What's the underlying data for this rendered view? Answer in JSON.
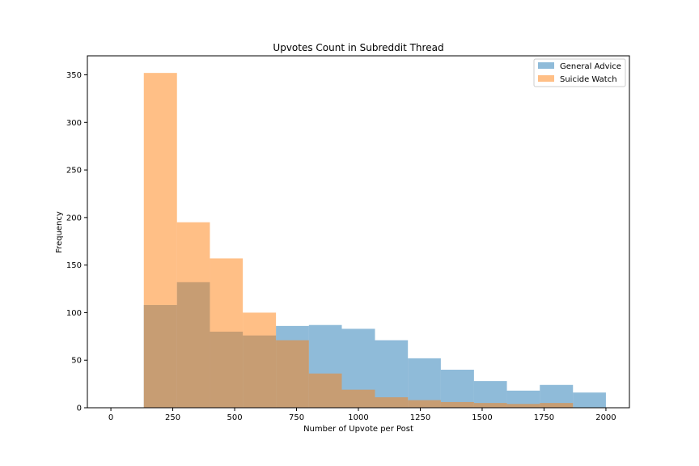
{
  "chart_data": {
    "type": "bar",
    "title": "Upvotes Count in Subreddit Thread",
    "xlabel": "Number of Upvote per Post",
    "ylabel": "Frequency",
    "xlim": [
      -95,
      2095
    ],
    "ylim": [
      0,
      370
    ],
    "xticks": [
      0,
      250,
      500,
      750,
      1000,
      1250,
      1500,
      1750,
      2000
    ],
    "yticks": [
      0,
      50,
      100,
      150,
      200,
      250,
      300,
      350
    ],
    "grid": false,
    "legend_position": "top-right",
    "series": [
      {
        "name": "General Advice",
        "color": "#1f77b4",
        "alpha": 0.5,
        "bins": [
          [
            133,
            267
          ],
          [
            267,
            400
          ],
          [
            400,
            533
          ],
          [
            533,
            667
          ],
          [
            667,
            800
          ],
          [
            800,
            933
          ],
          [
            933,
            1067
          ],
          [
            1067,
            1200
          ],
          [
            1200,
            1333
          ],
          [
            1333,
            1467
          ],
          [
            1467,
            1600
          ],
          [
            1600,
            1733
          ],
          [
            1733,
            1867
          ],
          [
            1867,
            2000
          ]
        ],
        "values": [
          108,
          132,
          80,
          76,
          86,
          87,
          83,
          71,
          52,
          40,
          28,
          18,
          24,
          16
        ]
      },
      {
        "name": "Suicide Watch",
        "color": "#ff7f0e",
        "alpha": 0.5,
        "bins": [
          [
            133,
            267
          ],
          [
            267,
            400
          ],
          [
            400,
            533
          ],
          [
            533,
            667
          ],
          [
            667,
            800
          ],
          [
            800,
            933
          ],
          [
            933,
            1067
          ],
          [
            1067,
            1200
          ],
          [
            1200,
            1333
          ],
          [
            1333,
            1467
          ],
          [
            1467,
            1600
          ],
          [
            1600,
            1733
          ],
          [
            1733,
            1867
          ]
        ],
        "values": [
          352,
          195,
          157,
          100,
          71,
          36,
          19,
          11,
          8,
          6,
          5,
          4,
          5
        ]
      }
    ]
  }
}
